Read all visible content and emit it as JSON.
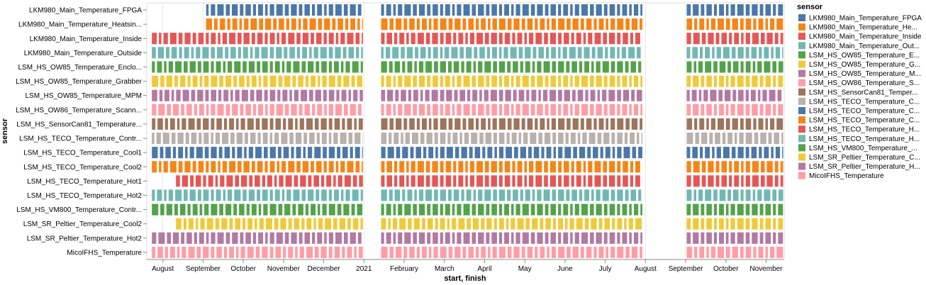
{
  "chart_data": {
    "type": "gantt",
    "xlabel": "start, finish",
    "ylabel": "sensor",
    "x_range": [
      6.6,
      22.45
    ],
    "x_ticks": [
      {
        "label": "August",
        "pos": 7.0
      },
      {
        "label": "September",
        "pos": 8.0
      },
      {
        "label": "October",
        "pos": 9.0
      },
      {
        "label": "November",
        "pos": 10.0
      },
      {
        "label": "December",
        "pos": 11.0
      },
      {
        "label": "2021",
        "pos": 12.0
      },
      {
        "label": "February",
        "pos": 13.0
      },
      {
        "label": "March",
        "pos": 14.0
      },
      {
        "label": "April",
        "pos": 15.0
      },
      {
        "label": "May",
        "pos": 16.0
      },
      {
        "label": "June",
        "pos": 17.0
      },
      {
        "label": "July",
        "pos": 18.0
      },
      {
        "label": "August",
        "pos": 19.0
      },
      {
        "label": "September",
        "pos": 20.0
      },
      {
        "label": "October",
        "pos": 21.0
      },
      {
        "label": "November",
        "pos": 22.0
      }
    ],
    "legend": {
      "title": "sensor",
      "items": [
        {
          "label": "LKM980_Main_Temperature_FPGA",
          "color": "#4c78a8"
        },
        {
          "label": "LKM980_Main_Temperature_He...",
          "color": "#f58518"
        },
        {
          "label": "LKM980_Main_Temperature_Inside",
          "color": "#e45756"
        },
        {
          "label": "LKM980_Main_Temperature_Out...",
          "color": "#72b7b2"
        },
        {
          "label": "LSM_HS_OW85_Temperature_E...",
          "color": "#54a24b"
        },
        {
          "label": "LSM_HS_OW85_Temperature_G...",
          "color": "#eeca3b"
        },
        {
          "label": "LSM_HS_OW85_Temperature_M...",
          "color": "#b279a2"
        },
        {
          "label": "LSM_HS_OW86_Temperature_S...",
          "color": "#ff9da6"
        },
        {
          "label": "LSM_HS_SensorCan81_Temper...",
          "color": "#9d755d"
        },
        {
          "label": "LSM_HS_TECO_Temperature_C...",
          "color": "#bab0ac"
        },
        {
          "label": "LSM_HS_TECO_Temperature_C...",
          "color": "#4c78a8"
        },
        {
          "label": "LSM_HS_TECO_Temperature_C...",
          "color": "#f58518"
        },
        {
          "label": "LSM_HS_TECO_Temperature_H...",
          "color": "#e45756"
        },
        {
          "label": "LSM_HS_TECO_Temperature_H...",
          "color": "#72b7b2"
        },
        {
          "label": "LSM_HS_VM800_Temperature_...",
          "color": "#54a24b"
        },
        {
          "label": "LSM_SR_Peltier_Temperature_C...",
          "color": "#eeca3b"
        },
        {
          "label": "LSM_SR_Peltier_Temperature_H...",
          "color": "#b279a2"
        },
        {
          "label": "MicoIFHS_Temperature",
          "color": "#ff9da6"
        }
      ]
    },
    "rows": [
      {
        "label": "LKM980_Main_Temperature_FPGA",
        "color": "#4c78a8",
        "segments": [
          [
            8.05,
            12.0
          ],
          [
            12.4,
            18.95
          ],
          [
            20.0,
            22.45
          ]
        ]
      },
      {
        "label": "LKM980_Main_Temperature_Heatsin...",
        "color": "#f58518",
        "segments": [
          [
            8.05,
            12.0
          ],
          [
            12.4,
            18.95
          ],
          [
            20.0,
            22.45
          ]
        ]
      },
      {
        "label": "LKM980_Main_Temperature_Inside",
        "color": "#e45756",
        "segments": [
          [
            6.7,
            12.0
          ],
          [
            12.4,
            18.95
          ],
          [
            20.0,
            22.45
          ]
        ]
      },
      {
        "label": "LKM980_Main_Temperature_Outside",
        "color": "#72b7b2",
        "segments": [
          [
            6.7,
            12.0
          ],
          [
            12.4,
            18.95
          ],
          [
            20.0,
            22.45
          ]
        ]
      },
      {
        "label": "LSM_HS_OW85_Temperature_Enclo...",
        "color": "#54a24b",
        "segments": [
          [
            6.7,
            12.0
          ],
          [
            12.4,
            18.95
          ],
          [
            20.0,
            22.45
          ]
        ]
      },
      {
        "label": "LSM_HS_OW85_Temperature_Grabber",
        "color": "#eeca3b",
        "segments": [
          [
            6.7,
            12.0
          ],
          [
            12.4,
            18.95
          ],
          [
            20.0,
            22.45
          ]
        ]
      },
      {
        "label": "LSM_HS_OW85_Temperature_MPM",
        "color": "#b279a2",
        "segments": [
          [
            6.7,
            12.0
          ],
          [
            12.4,
            18.95
          ],
          [
            20.0,
            22.45
          ]
        ]
      },
      {
        "label": "LSM_HS_OW86_Temperature_Scann...",
        "color": "#ff9da6",
        "segments": [
          [
            6.7,
            12.0
          ],
          [
            12.4,
            18.95
          ],
          [
            20.0,
            22.45
          ]
        ]
      },
      {
        "label": "LSM_HS_SensorCan81_Temperature...",
        "color": "#9d755d",
        "segments": [
          [
            6.7,
            12.0
          ],
          [
            12.4,
            18.95
          ],
          [
            20.0,
            22.45
          ]
        ]
      },
      {
        "label": "LSM_HS_TECO_Temperature_Contr...",
        "color": "#bab0ac",
        "segments": [
          [
            6.7,
            12.0
          ],
          [
            12.4,
            18.95
          ],
          [
            20.0,
            22.45
          ]
        ]
      },
      {
        "label": "LSM_HS_TECO_Temperature_Cool1",
        "color": "#4c78a8",
        "segments": [
          [
            6.7,
            12.0
          ],
          [
            12.4,
            18.95
          ],
          [
            20.0,
            22.45
          ]
        ]
      },
      {
        "label": "LSM_HS_TECO_Temperature_Cool2",
        "color": "#f58518",
        "segments": [
          [
            6.7,
            12.0
          ],
          [
            12.4,
            18.95
          ],
          [
            20.0,
            22.45
          ]
        ]
      },
      {
        "label": "LSM_HS_TECO_Temperature_Hot1",
        "color": "#e45756",
        "segments": [
          [
            7.3,
            12.0
          ],
          [
            12.4,
            18.95
          ],
          [
            20.0,
            22.45
          ]
        ]
      },
      {
        "label": "LSM_HS_TECO_Temperature_Hot2",
        "color": "#72b7b2",
        "segments": [
          [
            6.7,
            12.0
          ],
          [
            12.4,
            18.95
          ],
          [
            20.0,
            22.45
          ]
        ]
      },
      {
        "label": "LSM_HS_VM800_Temperature_Contr...",
        "color": "#54a24b",
        "segments": [
          [
            6.7,
            12.0
          ],
          [
            12.4,
            18.95
          ],
          [
            20.0,
            22.45
          ]
        ]
      },
      {
        "label": "LSM_SR_Peltier_Temperature_Cool2",
        "color": "#eeca3b",
        "segments": [
          [
            7.3,
            12.0
          ],
          [
            12.4,
            18.95
          ],
          [
            20.0,
            22.45
          ]
        ]
      },
      {
        "label": "LSM_SR_Peltier_Temperature_Hot2",
        "color": "#b279a2",
        "segments": [
          [
            6.7,
            12.0
          ],
          [
            12.4,
            18.95
          ],
          [
            20.0,
            22.45
          ]
        ]
      },
      {
        "label": "MicoIFHS_Temperature",
        "color": "#ff9da6",
        "segments": [
          [
            6.7,
            12.0
          ],
          [
            12.4,
            18.95
          ],
          [
            20.0,
            22.45
          ]
        ]
      }
    ]
  }
}
